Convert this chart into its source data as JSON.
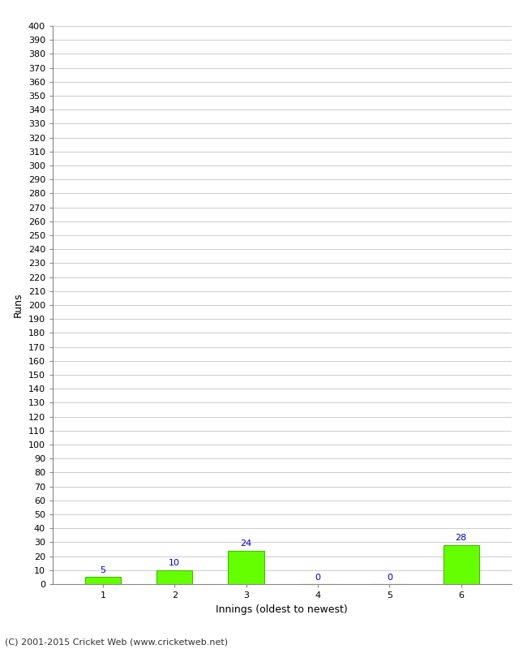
{
  "categories": [
    "1",
    "2",
    "3",
    "4",
    "5",
    "6"
  ],
  "values": [
    5,
    10,
    24,
    0,
    0,
    28
  ],
  "bar_color": "#66ff00",
  "bar_edge_color": "#44bb00",
  "label_color": "#0000cc",
  "ylabel": "Runs",
  "xlabel": "Innings (oldest to newest)",
  "ylim": [
    0,
    400
  ],
  "yticks": [
    0,
    10,
    20,
    30,
    40,
    50,
    60,
    70,
    80,
    90,
    100,
    110,
    120,
    130,
    140,
    150,
    160,
    170,
    180,
    190,
    200,
    210,
    220,
    230,
    240,
    250,
    260,
    270,
    280,
    290,
    300,
    310,
    320,
    330,
    340,
    350,
    360,
    370,
    380,
    390,
    400
  ],
  "grid_color": "#cccccc",
  "background_color": "#ffffff",
  "footer": "(C) 2001-2015 Cricket Web (www.cricketweb.net)",
  "label_fontsize": 8,
  "tick_fontsize": 8,
  "axis_label_fontsize": 9,
  "footer_fontsize": 8
}
